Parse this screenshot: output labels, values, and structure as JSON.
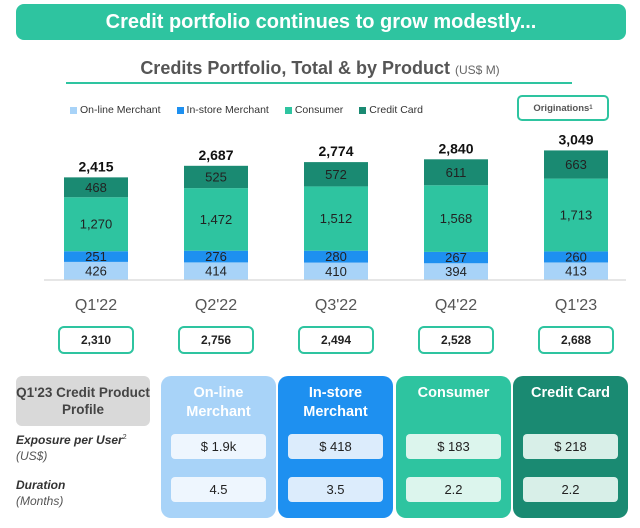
{
  "banner": "Credit portfolio continues to grow modestly...",
  "header": {
    "title": "Credits Portfolio, Total & by Product",
    "unit": "(US$ M)"
  },
  "legend": {
    "online": "On-line Merchant",
    "instore": "In-store Merchant",
    "consumer": "Consumer",
    "credit": "Credit Card",
    "originations": "Originations",
    "originations_note": "1"
  },
  "colors": {
    "online": "#a8d3f8",
    "instore": "#1e90f0",
    "consumer": "#2ec4a0",
    "credit": "#1a8a72",
    "accent": "#2ec4a0"
  },
  "chart_data": {
    "type": "bar",
    "stacked": true,
    "title": "Credits Portfolio, Total & by Product",
    "ylabel": "US$ M",
    "categories": [
      "Q1'22",
      "Q2'22",
      "Q3'22",
      "Q4'22",
      "Q1'23"
    ],
    "series": [
      {
        "name": "On-line Merchant",
        "values": [
          426,
          414,
          410,
          394,
          413
        ]
      },
      {
        "name": "In-store Merchant",
        "values": [
          251,
          276,
          280,
          267,
          260
        ]
      },
      {
        "name": "Consumer",
        "values": [
          1270,
          1472,
          1512,
          1568,
          1713
        ]
      },
      {
        "name": "Credit Card",
        "values": [
          468,
          525,
          572,
          611,
          663
        ]
      }
    ],
    "totals": [
      "2,415",
      "2,687",
      "2,774",
      "2,840",
      "3,049"
    ],
    "labels": [
      [
        "426",
        "414",
        "410",
        "394",
        "413"
      ],
      [
        "251",
        "276",
        "280",
        "267",
        "260"
      ],
      [
        "1,270",
        "1,472",
        "1,512",
        "1,568",
        "1,713"
      ],
      [
        "468",
        "525",
        "572",
        "611",
        "663"
      ]
    ],
    "originations": [
      "2,310",
      "2,756",
      "2,494",
      "2,528",
      "2,688"
    ]
  },
  "profile": {
    "label": "Q1'23 Credit Product Profile",
    "exposure_label": "Exposure per User",
    "exposure_note": "2",
    "exposure_unit": "(US$)",
    "duration_label": "Duration",
    "duration_unit": "(Months)",
    "products": [
      {
        "name": "On-line Merchant",
        "exposure": "$ 1.9k",
        "duration": "4.5"
      },
      {
        "name": "In-store Merchant",
        "exposure": "$ 418",
        "duration": "3.5"
      },
      {
        "name": "Consumer",
        "exposure": "$ 183",
        "duration": "2.2"
      },
      {
        "name": "Credit Card",
        "exposure": "$ 218",
        "duration": "2.2"
      }
    ]
  }
}
